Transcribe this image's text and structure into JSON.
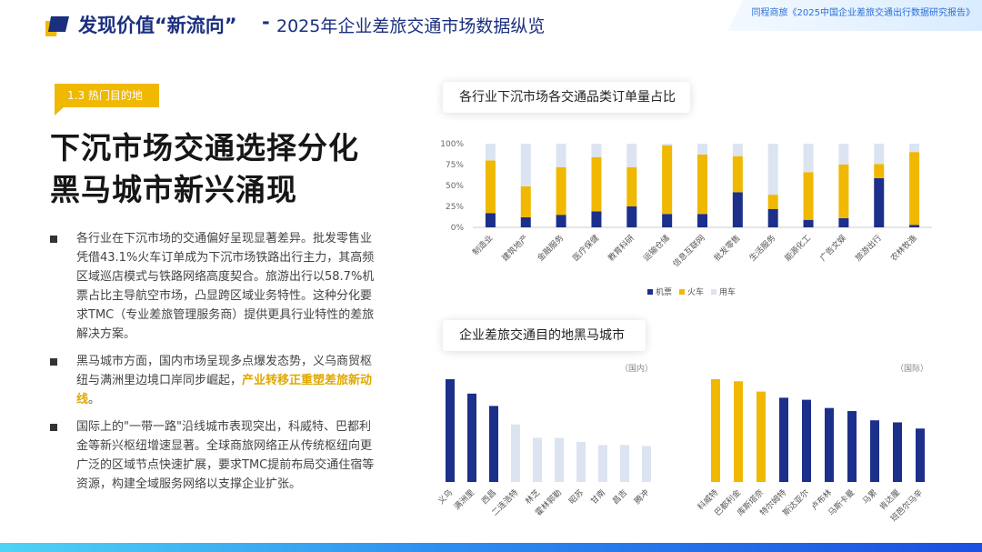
{
  "header": {
    "title_main": "发现价值“新流向”",
    "title_separator": "-",
    "title_sub": "2025年企业差旅交通市场数据纵览",
    "report_badge": "同程商旅《2025中国企业差旅交通出行数据研究报告》"
  },
  "section_tag": "1.3 热门目的地",
  "headline": [
    "下沉市场交通选择分化",
    "黑马城市新兴涌现"
  ],
  "bullets": [
    {
      "text": "各行业在下沉市场的交通偏好呈现显著差异。批发零售业凭借43.1%火车订单成为下沉市场铁路出行主力，其高频区域巡店模式与铁路网络高度契合。旅游出行以58.7%机票占比主导航空市场，凸显跨区域业务特性。这种分化要求TMC（专业差旅管理服务商）提供更具行业特性的差旅解决方案。"
    },
    {
      "text_before": "黑马城市方面，国内市场呈现多点爆发态势，义乌商贸枢纽与满洲里边境口岸同步崛起，",
      "highlight": "产业转移正重塑差旅新动线",
      "text_after": "。"
    },
    {
      "text": "国际上的\"一带一路\"沿线城市表现突出，科威特、巴都利金等新兴枢纽增速显著。全球商旅网络正从传统枢纽向更广泛的区域节点快速扩展，要求TMC提前布局交通住宿等资源，构建全域服务网络以支撑企业扩张。"
    }
  ],
  "colors": {
    "navy": "#1c2f8a",
    "yellow": "#f0b800",
    "light": "#dce4f2",
    "brand": "#1b2f80"
  },
  "chart_data": [
    {
      "type": "bar",
      "stacked": true,
      "title": "各行业下沉市场各交通品类订单量占比",
      "categories": [
        "制造业",
        "建筑地产",
        "金融服务",
        "医疗保健",
        "教育科研",
        "运输仓储",
        "信息互联网",
        "批发零售",
        "生活服务",
        "能源化工",
        "广告文娱",
        "旅游出行",
        "农林牧渔"
      ],
      "series": [
        {
          "name": "机票",
          "color": "#1c2f8a",
          "values": [
            17,
            12,
            15,
            19,
            25,
            16,
            16,
            42,
            22,
            9,
            11,
            58.7,
            3
          ]
        },
        {
          "name": "火车",
          "color": "#f0b800",
          "values": [
            63,
            37,
            57,
            65,
            47,
            82,
            71,
            43.1,
            17,
            57,
            64,
            17,
            87
          ]
        },
        {
          "name": "用车",
          "color": "#dce4f2",
          "values": [
            20,
            51,
            28,
            16,
            28,
            2,
            13,
            14.9,
            61,
            34,
            25,
            24.3,
            10
          ]
        }
      ],
      "yticks": [
        "0%",
        "25%",
        "50%",
        "75%",
        "100%"
      ],
      "ylim": [
        0,
        100
      ],
      "legend": "bottom"
    },
    {
      "type": "bar",
      "title": "企业差旅交通目的地黑马城市",
      "note": "（国内）",
      "categories": [
        "义乌",
        "满洲里",
        "西昌",
        "二连浩特",
        "林芝",
        "霍林郭勒",
        "昭苏",
        "甘南",
        "昌吉",
        "腾冲"
      ],
      "values": [
        100,
        86,
        74,
        56,
        43,
        43,
        39,
        36,
        36,
        35
      ],
      "colors": [
        "#1c2f8a",
        "#1c2f8a",
        "#1c2f8a",
        "#dce4f2",
        "#dce4f2",
        "#dce4f2",
        "#dce4f2",
        "#dce4f2",
        "#dce4f2",
        "#dce4f2"
      ],
      "ylim": [
        0,
        100
      ]
    },
    {
      "type": "bar",
      "note": "（国际）",
      "categories": [
        "科威特",
        "巴都利金",
        "库斯塔奈",
        "特尔姆特",
        "斯达亚尔",
        "卢布林",
        "马斯卡曼",
        "马累",
        "肯达厘",
        "班芭尔马辛"
      ],
      "values": [
        100,
        98,
        88,
        82,
        80,
        72,
        69,
        60,
        58,
        52
      ],
      "colors": [
        "#f0b800",
        "#f0b800",
        "#f0b800",
        "#1c2f8a",
        "#1c2f8a",
        "#1c2f8a",
        "#1c2f8a",
        "#1c2f8a",
        "#1c2f8a",
        "#1c2f8a"
      ],
      "ylim": [
        0,
        100
      ]
    }
  ]
}
